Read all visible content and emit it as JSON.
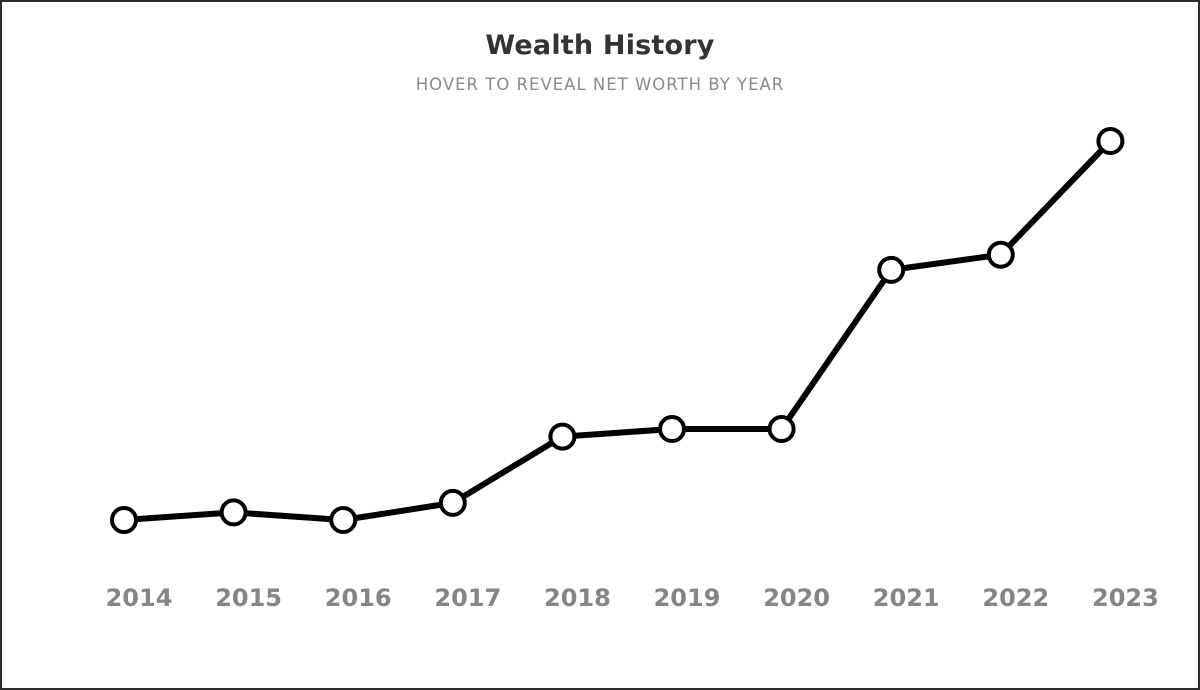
{
  "chart": {
    "title": "Wealth History",
    "subtitle": "HOVER TO REVEAL NET WORTH BY YEAR"
  },
  "colors": {
    "line": "#000000",
    "marker_fill": "#ffffff",
    "tick_label": "#858585",
    "title": "#333333",
    "subtitle": "#8a8a8a"
  },
  "chart_data": {
    "type": "line",
    "title": "Wealth History",
    "subtitle": "HOVER TO REVEAL NET WORTH BY YEAR",
    "xlabel": "",
    "ylabel": "",
    "categories": [
      "2014",
      "2015",
      "2016",
      "2017",
      "2018",
      "2019",
      "2020",
      "2021",
      "2022",
      "2023"
    ],
    "series": [
      {
        "values": [
          0.0,
          2.0,
          0.0,
          4.5,
          22.0,
          24.0,
          24.0,
          66.0,
          70.0,
          100.0
        ]
      }
    ],
    "ylim": [
      0,
      100
    ],
    "y_scale_note": "relative net worth, axis unlabeled",
    "grid": false,
    "legend": "none",
    "markers": "hollow-circle"
  }
}
